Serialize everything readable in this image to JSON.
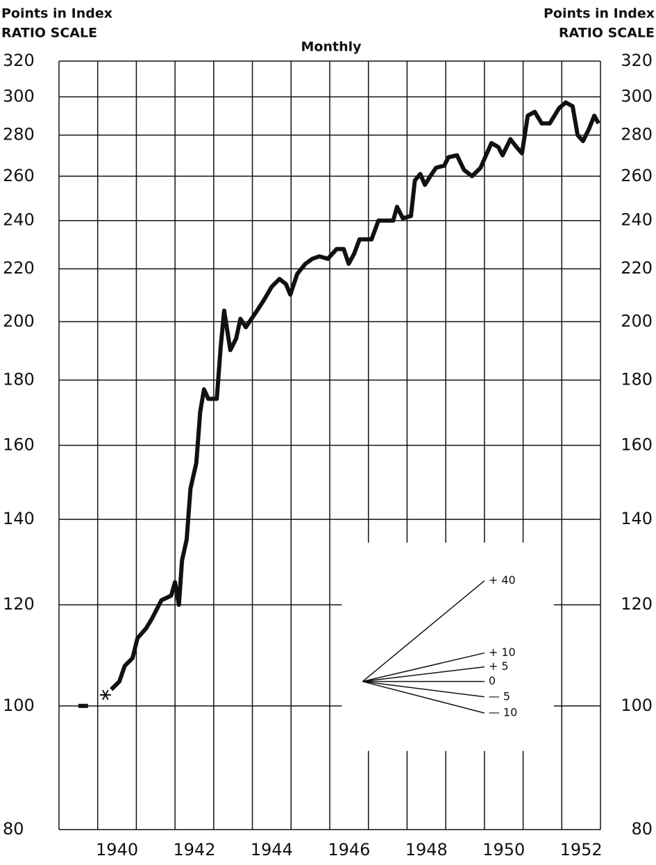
{
  "chart_data": {
    "type": "line",
    "title": "Monthly",
    "y_label_top": "Points in Index",
    "y_label_bottom": "RATIO SCALE",
    "log_scale": true,
    "grid": true,
    "color": "#111111",
    "xlim": [
      1939,
      1953
    ],
    "xgrid": [
      1939,
      1940,
      1941,
      1942,
      1943,
      1944,
      1945,
      1946,
      1947,
      1948,
      1949,
      1950,
      1951,
      1952,
      1953
    ],
    "xticks": [
      1940,
      1942,
      1944,
      1946,
      1948,
      1950,
      1952
    ],
    "ylim": [
      80,
      320
    ],
    "yticks": [
      80,
      100,
      120,
      140,
      160,
      180,
      200,
      220,
      240,
      260,
      280,
      300,
      320
    ],
    "x": [
      1939.5,
      1939.75,
      1940.0,
      1940.35,
      1940.56,
      1940.7,
      1940.9,
      1941.03,
      1941.25,
      1941.4,
      1941.65,
      1941.9,
      1942.0,
      1942.1,
      1942.18,
      1942.3,
      1942.4,
      1942.55,
      1942.65,
      1942.75,
      1942.86,
      1943.08,
      1943.18,
      1943.27,
      1943.43,
      1943.58,
      1943.69,
      1943.83,
      1944.12,
      1944.3,
      1944.5,
      1944.7,
      1944.87,
      1944.98,
      1945.16,
      1945.37,
      1945.55,
      1945.73,
      1945.95,
      1946.18,
      1946.36,
      1946.49,
      1946.63,
      1946.77,
      1947.08,
      1947.26,
      1947.46,
      1947.64,
      1947.74,
      1947.89,
      1948.1,
      1948.2,
      1948.34,
      1948.46,
      1948.6,
      1948.75,
      1948.96,
      1949.07,
      1949.29,
      1949.47,
      1949.68,
      1949.9,
      1950.18,
      1950.36,
      1950.47,
      1950.67,
      1950.83,
      1950.97,
      1951.12,
      1951.3,
      1951.48,
      1951.69,
      1951.93,
      1952.1,
      1952.28,
      1952.41,
      1952.55,
      1952.7,
      1952.84,
      1952.95
    ],
    "values": [
      100,
      100,
      null,
      103,
      104.5,
      107.5,
      109,
      113,
      115,
      117,
      121,
      122,
      125,
      120,
      130,
      135,
      148,
      155,
      170,
      177,
      174,
      174,
      191,
      204,
      190,
      194,
      201,
      198,
      204,
      208,
      213,
      216,
      214,
      210,
      218,
      222,
      224,
      225,
      224,
      228,
      228,
      222,
      226,
      232,
      232,
      240,
      240,
      240,
      246,
      241,
      242,
      258,
      261,
      256,
      260,
      264,
      265,
      269,
      270,
      263,
      260,
      264,
      276,
      274,
      270,
      278,
      274,
      271,
      290,
      292,
      286,
      286,
      294,
      297,
      295,
      280,
      277,
      283,
      290,
      286
    ],
    "marker": {
      "x": 1940.2,
      "value": 102
    },
    "key": {
      "origin_x": 1946.85,
      "origin_value": 104.5,
      "end_x": 1950.0,
      "values": [
        40,
        10,
        5,
        0,
        -5,
        -10
      ],
      "value_labels": [
        "+ 40",
        "+ 10",
        "+ 5",
        "0",
        "— 5",
        "— 10"
      ]
    }
  }
}
